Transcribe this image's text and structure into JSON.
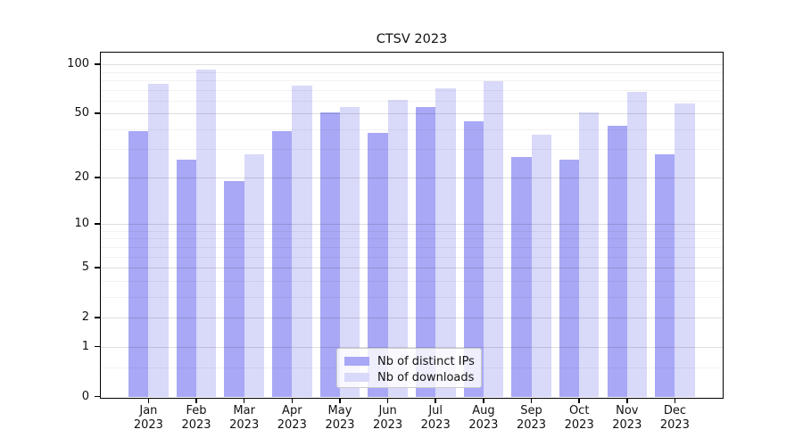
{
  "chart_data": {
    "type": "bar",
    "title": "CTSV 2023",
    "year": "2023",
    "categories": [
      "Jan",
      "Feb",
      "Mar",
      "Apr",
      "May",
      "Jun",
      "Jul",
      "Aug",
      "Sep",
      "Oct",
      "Nov",
      "Dec"
    ],
    "series": [
      {
        "name": "Nb of distinct IPs",
        "color": "#a8a8f6",
        "values": [
          39,
          26,
          19,
          39,
          51,
          38,
          55,
          45,
          27,
          26,
          42,
          28
        ]
      },
      {
        "name": "Nb of downloads",
        "color": "#d9d9fa",
        "values": [
          76,
          93,
          28,
          75,
          55,
          61,
          72,
          79,
          37,
          51,
          68,
          58
        ]
      }
    ],
    "yscale": "log1p",
    "yticks": [
      0,
      1,
      2,
      5,
      10,
      20,
      50,
      100
    ],
    "minor_yticks": [
      0.5,
      3,
      4,
      6,
      7,
      8,
      9,
      30,
      40,
      60,
      70,
      80,
      90
    ],
    "ylim": [
      0,
      117
    ],
    "grid": true,
    "legend_position": "lower center",
    "xlabel": "",
    "ylabel": ""
  }
}
